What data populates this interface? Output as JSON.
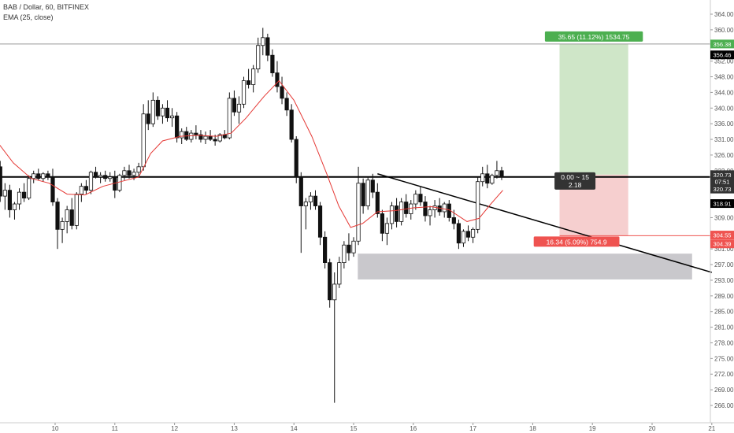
{
  "chart_header": {
    "title": "BAB / Dollar, 60, BITFINEX",
    "indicator": "EMA (25, close)"
  },
  "chart_data": {
    "type": "candlestick",
    "y_axis": {
      "ticks": [
        266.0,
        269.0,
        272.0,
        275.0,
        278.0,
        281.0,
        285.0,
        289.0,
        293.0,
        297.0,
        301.0,
        305.0,
        309.0,
        313.0,
        317.0,
        322.0,
        326.0,
        331.0,
        336.0,
        340.0,
        344.0,
        348.0,
        352.0,
        356.0,
        360.0,
        364.0
      ],
      "tick_labels": [
        "266.00",
        "269.00",
        "272.00",
        "275.00",
        "278.00",
        "281.00",
        "285.00",
        "289.00",
        "293.00",
        "297.00",
        "301.00",
        "305.00",
        "309.00",
        "313.00",
        "317.00",
        "322.00",
        "326.00",
        "331.00",
        "336.00",
        "340.00",
        "344.00",
        "348.00",
        "352.00",
        "356.00",
        "360.00",
        "364.00"
      ]
    },
    "x_axis": {
      "ticks": [
        10,
        11,
        12,
        13,
        14,
        15,
        16,
        17,
        18,
        19,
        20,
        21
      ],
      "tick_labels": [
        "10",
        "11",
        "12",
        "13",
        "14",
        "15",
        "16",
        "17",
        "18",
        "19",
        "20",
        "21"
      ]
    },
    "colors": {
      "up": "#ffffff",
      "down": "#111111",
      "wick": "#111111",
      "ema": "#e53935",
      "profit_zone": "#cfe6c8",
      "loss_zone": "#f6cfcf",
      "demand_zone": "#c9c8cc",
      "label_green": "#4caf50",
      "label_red": "#ef5350",
      "label_dark": "#333333",
      "label_black": "#000000"
    },
    "price_labels": [
      {
        "text": "356.38",
        "price": 356.38,
        "style": "green"
      },
      {
        "text": "356.46",
        "price": 353.6,
        "style": "black"
      },
      {
        "text": "320.73",
        "price": 320.73,
        "style": "dark"
      },
      {
        "text": "07:51",
        "price": 318.6,
        "style": "dark"
      },
      {
        "text": "320.73",
        "price": 316.3,
        "style": "dark"
      },
      {
        "text": "318.91",
        "price": 312.6,
        "style": "black"
      },
      {
        "text": "304.55",
        "price": 304.55,
        "style": "red"
      },
      {
        "text": "304.39",
        "price": 302.3,
        "style": "red"
      }
    ],
    "position": {
      "entry": 320.73,
      "target": 356.38,
      "stop": 304.39,
      "entry_time": 18.45,
      "end_time": 19.6,
      "target_label": "35.65 (11.12%) 1534.75",
      "stop_label": "16.34 (5.09%) 754.9",
      "center_label_line1": "0.00 ~ 15",
      "center_label_line2": "2.18"
    },
    "support_line": {
      "price": 320.0
    },
    "demand_zone": {
      "t0": 15.07,
      "t1": 20.67,
      "p0": 293.2,
      "p1": 299.8
    },
    "trendline": {
      "t0": 15.4,
      "p0": 321.0,
      "t1": 21.0,
      "p1": 295.0
    },
    "top_level_line": {
      "price": 356.38
    },
    "ohlc": [
      [
        9.0,
        328.0,
        329.5,
        321.0,
        323.0
      ],
      [
        9.08,
        323.0,
        324.5,
        313.0,
        314.5
      ],
      [
        9.16,
        314.5,
        318.0,
        311.0,
        316.0
      ],
      [
        9.24,
        316.0,
        317.5,
        309.0,
        311.0
      ],
      [
        9.32,
        311.0,
        313.0,
        308.5,
        312.5
      ],
      [
        9.4,
        312.5,
        316.5,
        311.0,
        315.5
      ],
      [
        9.48,
        315.5,
        318.0,
        313.0,
        314.0
      ],
      [
        9.56,
        314.0,
        320.5,
        313.5,
        319.5
      ],
      [
        9.64,
        319.5,
        322.0,
        318.0,
        321.0
      ],
      [
        9.72,
        321.0,
        322.5,
        319.0,
        319.5
      ],
      [
        9.8,
        319.5,
        321.5,
        318.5,
        321.0
      ],
      [
        9.88,
        321.0,
        322.0,
        319.0,
        320.0
      ],
      [
        9.96,
        320.0,
        322.5,
        312.0,
        313.0
      ],
      [
        10.04,
        313.0,
        314.0,
        301.0,
        306.0
      ],
      [
        10.12,
        306.0,
        309.0,
        302.5,
        308.0
      ],
      [
        10.2,
        308.0,
        312.0,
        305.0,
        311.0
      ],
      [
        10.28,
        311.0,
        314.0,
        306.0,
        307.0
      ],
      [
        10.36,
        307.0,
        315.5,
        306.0,
        315.0
      ],
      [
        10.44,
        315.0,
        318.0,
        313.0,
        317.0
      ],
      [
        10.52,
        317.0,
        319.0,
        315.0,
        316.0
      ],
      [
        10.6,
        316.0,
        322.0,
        315.0,
        321.5
      ],
      [
        10.68,
        321.5,
        323.0,
        319.5,
        320.0
      ],
      [
        10.76,
        320.0,
        321.5,
        318.0,
        320.5
      ],
      [
        10.84,
        320.5,
        322.0,
        318.5,
        319.5
      ],
      [
        10.92,
        319.5,
        321.5,
        318.5,
        320.0
      ],
      [
        11.0,
        320.0,
        322.0,
        314.0,
        316.0
      ],
      [
        11.08,
        316.0,
        321.0,
        315.5,
        320.5
      ],
      [
        11.16,
        320.5,
        323.0,
        319.0,
        322.0
      ],
      [
        11.24,
        322.0,
        323.5,
        319.5,
        320.5
      ],
      [
        11.32,
        320.5,
        322.5,
        319.0,
        321.5
      ],
      [
        11.4,
        321.5,
        324.0,
        320.0,
        323.0
      ],
      [
        11.48,
        323.0,
        341.0,
        322.0,
        338.5
      ],
      [
        11.56,
        338.5,
        342.0,
        334.0,
        336.0
      ],
      [
        11.64,
        336.0,
        344.0,
        335.0,
        342.0
      ],
      [
        11.72,
        342.0,
        343.0,
        337.0,
        338.0
      ],
      [
        11.8,
        338.0,
        341.0,
        336.0,
        340.0
      ],
      [
        11.88,
        340.0,
        342.0,
        336.5,
        337.5
      ],
      [
        11.96,
        337.5,
        340.0,
        335.0,
        338.0
      ],
      [
        12.04,
        338.0,
        339.0,
        330.0,
        331.5
      ],
      [
        12.12,
        331.5,
        334.5,
        329.5,
        333.5
      ],
      [
        12.2,
        333.5,
        335.0,
        330.5,
        331.0
      ],
      [
        12.28,
        331.0,
        334.0,
        330.0,
        333.0
      ],
      [
        12.36,
        333.0,
        335.5,
        331.0,
        332.5
      ],
      [
        12.44,
        332.5,
        334.0,
        330.0,
        331.0
      ],
      [
        12.52,
        331.0,
        333.5,
        329.5,
        332.0
      ],
      [
        12.6,
        332.0,
        334.0,
        330.5,
        331.0
      ],
      [
        12.68,
        331.0,
        332.5,
        329.0,
        330.5
      ],
      [
        12.76,
        330.5,
        333.0,
        330.0,
        332.5
      ],
      [
        12.84,
        332.5,
        334.0,
        331.0,
        331.5
      ],
      [
        12.92,
        331.5,
        344.0,
        331.0,
        342.5
      ],
      [
        13.0,
        342.5,
        344.5,
        338.0,
        339.0
      ],
      [
        13.08,
        339.0,
        343.0,
        336.0,
        341.0
      ],
      [
        13.16,
        341.0,
        348.0,
        340.0,
        347.0
      ],
      [
        13.24,
        347.0,
        350.0,
        345.0,
        346.0
      ],
      [
        13.32,
        346.0,
        351.0,
        344.0,
        350.0
      ],
      [
        13.4,
        350.0,
        358.0,
        349.0,
        356.0
      ],
      [
        13.48,
        356.0,
        360.5,
        353.5,
        358.0
      ],
      [
        13.56,
        358.0,
        359.0,
        352.0,
        353.5
      ],
      [
        13.64,
        353.5,
        355.0,
        348.0,
        349.0
      ],
      [
        13.72,
        349.0,
        352.0,
        344.0,
        345.5
      ],
      [
        13.8,
        345.5,
        348.0,
        341.0,
        342.5
      ],
      [
        13.88,
        342.5,
        344.0,
        338.0,
        339.5
      ],
      [
        13.96,
        339.5,
        341.0,
        330.0,
        331.0
      ],
      [
        14.04,
        331.0,
        332.0,
        318.0,
        320.0
      ],
      [
        14.12,
        320.0,
        321.5,
        300.0,
        312.0
      ],
      [
        14.2,
        312.0,
        314.0,
        306.0,
        313.0
      ],
      [
        14.28,
        313.0,
        315.5,
        311.0,
        314.5
      ],
      [
        14.36,
        314.5,
        316.0,
        311.0,
        312.0
      ],
      [
        14.44,
        312.0,
        313.0,
        302.0,
        304.0
      ],
      [
        14.52,
        304.0,
        305.5,
        296.0,
        297.5
      ],
      [
        14.6,
        297.5,
        298.5,
        286.0,
        288.0
      ],
      [
        14.68,
        288.0,
        295.0,
        266.5,
        292.0
      ],
      [
        14.76,
        292.0,
        299.0,
        291.0,
        297.5
      ],
      [
        14.84,
        297.5,
        303.0,
        296.0,
        302.0
      ],
      [
        14.92,
        302.0,
        305.0,
        298.0,
        300.0
      ],
      [
        15.0,
        300.0,
        304.0,
        299.0,
        303.0
      ],
      [
        15.08,
        303.0,
        323.0,
        302.0,
        318.0
      ],
      [
        15.16,
        318.0,
        319.5,
        310.0,
        312.0
      ],
      [
        15.24,
        312.0,
        320.0,
        311.0,
        319.0
      ],
      [
        15.32,
        319.0,
        321.0,
        314.0,
        315.5
      ],
      [
        15.4,
        315.5,
        318.0,
        309.0,
        310.0
      ],
      [
        15.48,
        310.0,
        311.0,
        303.0,
        305.0
      ],
      [
        15.56,
        305.0,
        309.0,
        302.0,
        307.5
      ],
      [
        15.64,
        307.5,
        313.0,
        306.0,
        312.0
      ],
      [
        15.72,
        312.0,
        314.0,
        306.5,
        308.0
      ],
      [
        15.8,
        308.0,
        314.0,
        307.0,
        313.0
      ],
      [
        15.88,
        313.0,
        315.0,
        309.0,
        310.0
      ],
      [
        15.96,
        310.0,
        313.5,
        308.5,
        312.5
      ],
      [
        16.04,
        312.5,
        316.0,
        311.0,
        315.0
      ],
      [
        16.12,
        315.0,
        317.0,
        312.0,
        313.0
      ],
      [
        16.2,
        313.0,
        314.5,
        308.0,
        309.5
      ],
      [
        16.28,
        309.5,
        312.0,
        307.0,
        311.0
      ],
      [
        16.36,
        311.0,
        313.5,
        309.0,
        312.0
      ],
      [
        16.44,
        312.0,
        314.0,
        309.5,
        310.5
      ],
      [
        16.52,
        310.5,
        313.0,
        309.0,
        312.5
      ],
      [
        16.6,
        312.5,
        313.5,
        308.0,
        309.0
      ],
      [
        16.68,
        309.0,
        311.0,
        306.0,
        307.5
      ],
      [
        16.76,
        307.5,
        308.5,
        301.0,
        302.5
      ],
      [
        16.84,
        302.5,
        306.0,
        301.5,
        305.5
      ],
      [
        16.92,
        305.5,
        307.0,
        303.0,
        304.0
      ],
      [
        17.0,
        304.0,
        306.5,
        302.5,
        306.0
      ],
      [
        17.08,
        306.0,
        320.0,
        305.0,
        318.5
      ],
      [
        17.16,
        318.5,
        323.0,
        317.0,
        321.0
      ],
      [
        17.24,
        321.0,
        323.5,
        316.5,
        318.0
      ],
      [
        17.32,
        318.0,
        321.0,
        317.5,
        320.5
      ],
      [
        17.4,
        320.5,
        324.5,
        319.5,
        322.0
      ],
      [
        17.48,
        322.0,
        323.0,
        319.0,
        320.0
      ]
    ],
    "ema": [
      [
        9.0,
        331.0
      ],
      [
        9.3,
        324.0
      ],
      [
        9.6,
        319.5
      ],
      [
        9.9,
        318.0
      ],
      [
        10.2,
        315.0
      ],
      [
        10.5,
        314.8
      ],
      [
        10.8,
        317.0
      ],
      [
        11.1,
        318.5
      ],
      [
        11.4,
        320.0
      ],
      [
        11.6,
        326.5
      ],
      [
        11.8,
        330.5
      ],
      [
        12.1,
        332.0
      ],
      [
        12.4,
        332.3
      ],
      [
        12.7,
        332.0
      ],
      [
        12.95,
        333.0
      ],
      [
        13.2,
        337.5
      ],
      [
        13.5,
        343.0
      ],
      [
        13.75,
        347.0
      ],
      [
        14.0,
        342.0
      ],
      [
        14.3,
        332.0
      ],
      [
        14.55,
        321.0
      ],
      [
        14.75,
        312.0
      ],
      [
        14.95,
        306.5
      ],
      [
        15.15,
        307.5
      ],
      [
        15.4,
        310.5
      ],
      [
        15.7,
        310.8
      ],
      [
        16.0,
        311.5
      ],
      [
        16.3,
        311.8
      ],
      [
        16.6,
        311.0
      ],
      [
        16.9,
        308.0
      ],
      [
        17.1,
        308.8
      ],
      [
        17.3,
        312.5
      ],
      [
        17.5,
        316.0
      ]
    ]
  }
}
